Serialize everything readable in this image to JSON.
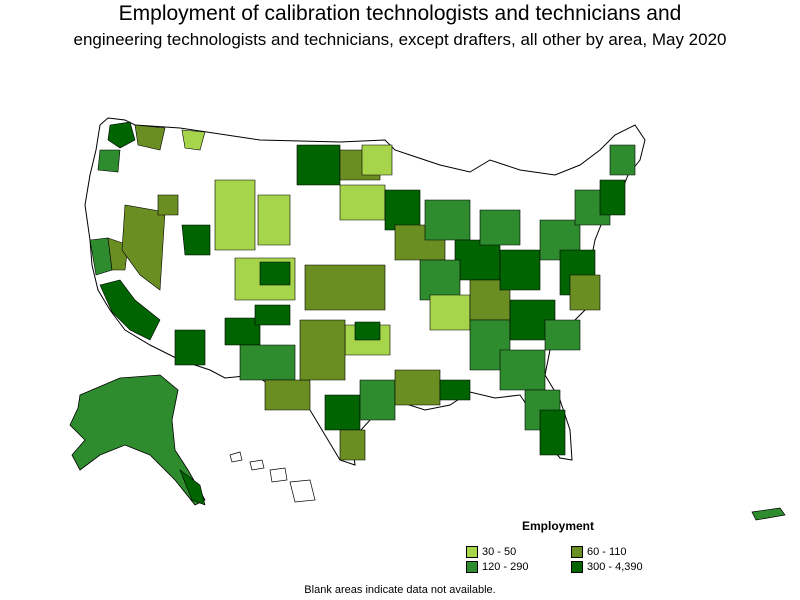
{
  "title": "Employment of calibration technologists and technicians and",
  "subtitle": "engineering technologists and technicians, except drafters, all other by area, May 2020",
  "legend": {
    "title": "Employment",
    "items": [
      {
        "label": "30 - 50",
        "color": "#a6d44a"
      },
      {
        "label": "60 - 110",
        "color": "#6b8e23"
      },
      {
        "label": "120 - 290",
        "color": "#2e8b2e"
      },
      {
        "label": "300 - 4,390",
        "color": "#006400"
      }
    ]
  },
  "footnote": "Blank areas indicate data not available.",
  "colors": {
    "outline": "#000000",
    "blank": "#ffffff"
  }
}
